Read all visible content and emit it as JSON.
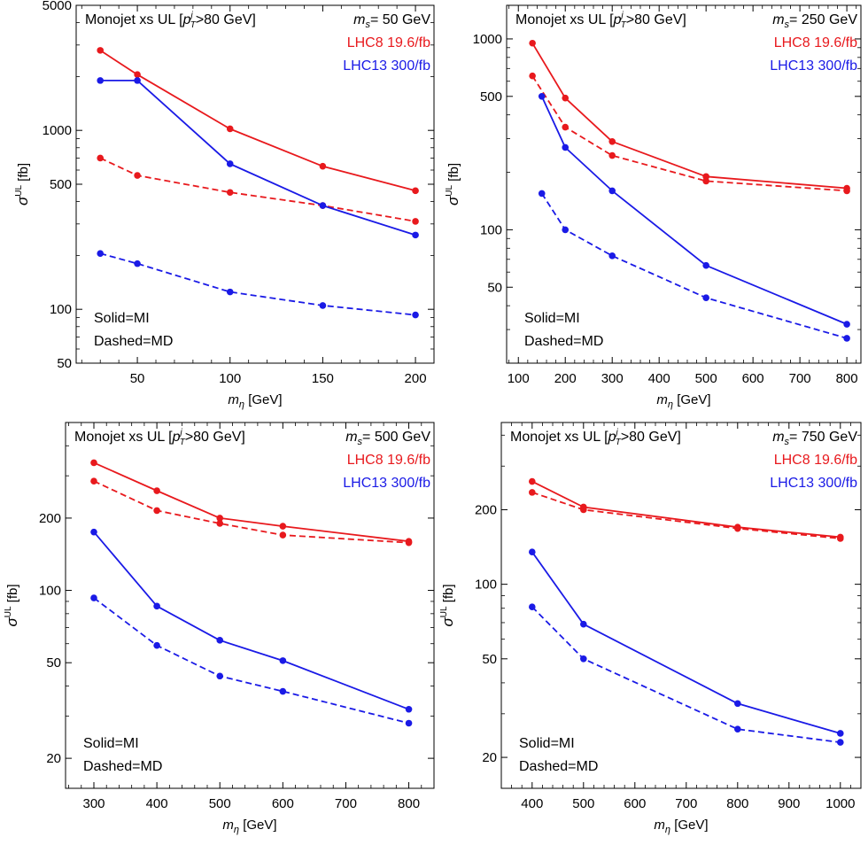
{
  "colors": {
    "lhc8": "#e8191d",
    "lhc13": "#1a1ae6",
    "axis": "#000000"
  },
  "chart_data": [
    {
      "type": "line",
      "yscale": "log",
      "title_parts": {
        "prefix": "Monojet xs UL [",
        "pt_sym": "p",
        "pt_sup": "j",
        "pt_sub": "T",
        "cut": ">80 GeV]",
        "ms_sym": "m",
        "ms_sub": "s",
        "ms_val": "= 50 GeV"
      },
      "legend": [
        "LHC8 19.6/fb",
        "LHC13 300/fb"
      ],
      "notes": [
        "Solid=MI",
        "Dashed=MD"
      ],
      "xlabel": {
        "sym": "m",
        "sub": "η",
        "unit": " [GeV]"
      },
      "ylabel": {
        "sym": "σ",
        "sup": "UL",
        "unit": " [fb]"
      },
      "xlim": [
        17,
        210
      ],
      "ylim": [
        50,
        5000
      ],
      "xticks": [
        50,
        100,
        150,
        200
      ],
      "yticks": [
        50,
        100,
        500,
        1000,
        5000
      ],
      "series": [
        {
          "name": "LHC8 19.6/fb",
          "style": "solid",
          "color": "lhc8",
          "x": [
            30,
            50,
            100,
            150,
            200
          ],
          "y": [
            2800,
            2050,
            1020,
            630,
            460
          ]
        },
        {
          "name": "LHC8 19.6/fb",
          "style": "dashed",
          "color": "lhc8",
          "x": [
            30,
            50,
            100,
            150,
            200
          ],
          "y": [
            700,
            560,
            450,
            380,
            310
          ]
        },
        {
          "name": "LHC13 300/fb",
          "style": "solid",
          "color": "lhc13",
          "x": [
            30,
            50,
            100,
            150,
            200
          ],
          "y": [
            1900,
            1900,
            650,
            380,
            260
          ]
        },
        {
          "name": "LHC13 300/fb",
          "style": "dashed",
          "color": "lhc13",
          "x": [
            30,
            50,
            100,
            150,
            200
          ],
          "y": [
            205,
            180,
            125,
            105,
            93
          ]
        }
      ]
    },
    {
      "type": "line",
      "yscale": "log",
      "title_parts": {
        "prefix": "Monojet xs UL [",
        "pt_sym": "p",
        "pt_sup": "j",
        "pt_sub": "T",
        "cut": ">80 GeV]",
        "ms_sym": "m",
        "ms_sub": "s",
        "ms_val": "= 250 GeV"
      },
      "legend": [
        "LHC8 19.6/fb",
        "LHC13 300/fb"
      ],
      "notes": [
        "Solid=MI",
        "Dashed=MD"
      ],
      "xlabel": {
        "sym": "m",
        "sub": "η",
        "unit": " [GeV]"
      },
      "ylabel": {
        "sym": "σ",
        "sup": "UL",
        "unit": " [fb]"
      },
      "xlim": [
        75,
        830
      ],
      "ylim": [
        20,
        1500
      ],
      "xticks": [
        100,
        200,
        300,
        400,
        500,
        600,
        700,
        800
      ],
      "yticks": [
        50,
        100,
        500,
        1000
      ],
      "series": [
        {
          "name": "LHC8 19.6/fb",
          "style": "solid",
          "color": "lhc8",
          "x": [
            130,
            200,
            300,
            500,
            800
          ],
          "y": [
            950,
            490,
            290,
            190,
            165
          ]
        },
        {
          "name": "LHC8 19.6/fb",
          "style": "dashed",
          "color": "lhc8",
          "x": [
            130,
            200,
            300,
            500,
            800
          ],
          "y": [
            640,
            345,
            245,
            180,
            160
          ]
        },
        {
          "name": "LHC13 300/fb",
          "style": "solid",
          "color": "lhc13",
          "x": [
            150,
            200,
            300,
            500,
            800
          ],
          "y": [
            500,
            270,
            160,
            65,
            32
          ]
        },
        {
          "name": "LHC13 300/fb",
          "style": "dashed",
          "color": "lhc13",
          "x": [
            150,
            200,
            300,
            500,
            800
          ],
          "y": [
            155,
            100,
            73,
            44,
            27
          ]
        }
      ]
    },
    {
      "type": "line",
      "yscale": "log",
      "title_parts": {
        "prefix": "Monojet xs UL [",
        "pt_sym": "p",
        "pt_sup": "j",
        "pt_sub": "T",
        "cut": ">80 GeV]",
        "ms_sym": "m",
        "ms_sub": "s",
        "ms_val": "= 500 GeV"
      },
      "legend": [
        "LHC8 19.6/fb",
        "LHC13 300/fb"
      ],
      "notes": [
        "Solid=MI",
        "Dashed=MD"
      ],
      "xlabel": {
        "sym": "m",
        "sub": "η",
        "unit": " [GeV]"
      },
      "ylabel": {
        "sym": "σ",
        "sup": "UL",
        "unit": " [fb]"
      },
      "xlim": [
        255,
        840
      ],
      "ylim": [
        15,
        500
      ],
      "xticks": [
        300,
        400,
        500,
        600,
        700,
        800
      ],
      "yticks": [
        20,
        50,
        100,
        200
      ],
      "series": [
        {
          "name": "LHC8 19.6/fb",
          "style": "solid",
          "color": "lhc8",
          "x": [
            300,
            400,
            500,
            600,
            800
          ],
          "y": [
            340,
            260,
            200,
            185,
            160
          ]
        },
        {
          "name": "LHC8 19.6/fb",
          "style": "dashed",
          "color": "lhc8",
          "x": [
            300,
            400,
            500,
            600,
            800
          ],
          "y": [
            285,
            215,
            190,
            170,
            158
          ]
        },
        {
          "name": "LHC13 300/fb",
          "style": "solid",
          "color": "lhc13",
          "x": [
            300,
            400,
            500,
            600,
            800
          ],
          "y": [
            175,
            86,
            62,
            51,
            32
          ]
        },
        {
          "name": "LHC13 300/fb",
          "style": "dashed",
          "color": "lhc13",
          "x": [
            300,
            400,
            500,
            600,
            800
          ],
          "y": [
            93,
            59,
            44,
            38,
            28
          ]
        }
      ]
    },
    {
      "type": "line",
      "yscale": "log",
      "title_parts": {
        "prefix": "Monojet xs UL [",
        "pt_sym": "p",
        "pt_sup": "j",
        "pt_sub": "T",
        "cut": ">80 GeV]",
        "ms_sym": "m",
        "ms_sub": "s",
        "ms_val": "= 750 GeV"
      },
      "legend": [
        "LHC8 19.6/fb",
        "LHC13 300/fb"
      ],
      "notes": [
        "Solid=MI",
        "Dashed=MD"
      ],
      "xlabel": {
        "sym": "m",
        "sub": "η",
        "unit": " [GeV]"
      },
      "ylabel": {
        "sym": "σ",
        "sup": "UL",
        "unit": " [fb]"
      },
      "xlim": [
        340,
        1040
      ],
      "ylim": [
        15,
        450
      ],
      "xticks": [
        400,
        500,
        600,
        700,
        800,
        900,
        1000
      ],
      "yticks": [
        20,
        50,
        100,
        200
      ],
      "series": [
        {
          "name": "LHC8 19.6/fb",
          "style": "solid",
          "color": "lhc8",
          "x": [
            400,
            500,
            800,
            1000
          ],
          "y": [
            260,
            205,
            170,
            155
          ]
        },
        {
          "name": "LHC8 19.6/fb",
          "style": "dashed",
          "color": "lhc8",
          "x": [
            400,
            500,
            800,
            1000
          ],
          "y": [
            235,
            200,
            168,
            153
          ]
        },
        {
          "name": "LHC13 300/fb",
          "style": "solid",
          "color": "lhc13",
          "x": [
            400,
            500,
            800,
            1000
          ],
          "y": [
            135,
            69,
            33,
            25
          ]
        },
        {
          "name": "LHC13 300/fb",
          "style": "dashed",
          "color": "lhc13",
          "x": [
            400,
            500,
            800,
            1000
          ],
          "y": [
            81,
            50,
            26,
            23
          ]
        }
      ]
    }
  ]
}
